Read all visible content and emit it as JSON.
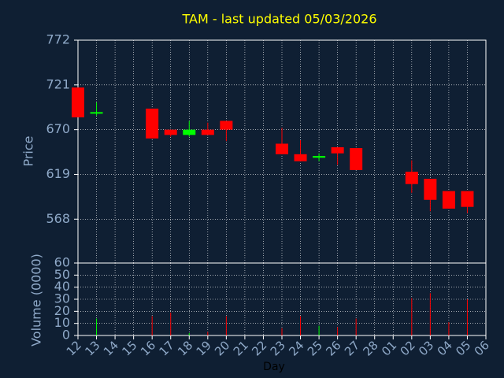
{
  "chart_data": [
    {
      "type": "candlestick",
      "title": "TAM - last updated 05/03/2026",
      "ylabel": "Price",
      "ylim": [
        518,
        772
      ],
      "yticks": [
        568,
        619,
        670,
        721,
        772
      ],
      "grid": true,
      "up_color": "#00ff00",
      "down_color": "#ff0000",
      "open": [
        718,
        689,
        null,
        null,
        694,
        670,
        664,
        670,
        680,
        null,
        null,
        654,
        642,
        638,
        650,
        649,
        null,
        null,
        622,
        614,
        600,
        600,
        null
      ],
      "high": [
        718,
        701,
        null,
        null,
        694,
        670,
        680,
        678,
        680,
        null,
        null,
        672,
        658,
        643,
        650,
        649,
        null,
        null,
        635,
        614,
        600,
        600,
        null
      ],
      "low": [
        684,
        686,
        null,
        null,
        660,
        662,
        662,
        664,
        657,
        null,
        null,
        642,
        634,
        634,
        630,
        624,
        null,
        null,
        598,
        577,
        580,
        575,
        null
      ],
      "close": [
        684,
        690,
        null,
        null,
        660,
        664,
        670,
        664,
        670,
        null,
        null,
        642,
        634,
        640,
        643,
        624,
        null,
        null,
        608,
        590,
        580,
        582,
        null
      ]
    },
    {
      "type": "volume",
      "ylabel": "Volume (0000)",
      "xlabel": "Day",
      "ylim": [
        0,
        60
      ],
      "yticks": [
        0,
        10,
        20,
        30,
        40,
        50,
        60
      ],
      "grid": true,
      "categories": [
        "12",
        "13",
        "14",
        "15",
        "16",
        "17",
        "18",
        "19",
        "20",
        "21",
        "22",
        "23",
        "24",
        "25",
        "26",
        "27",
        "28",
        "01",
        "02",
        "03",
        "04",
        "05",
        "06"
      ],
      "values": [
        null,
        14,
        null,
        null,
        16,
        19,
        2,
        3,
        16,
        null,
        null,
        6,
        16,
        8,
        7,
        14,
        null,
        null,
        31,
        35,
        11,
        30,
        null
      ]
    }
  ]
}
